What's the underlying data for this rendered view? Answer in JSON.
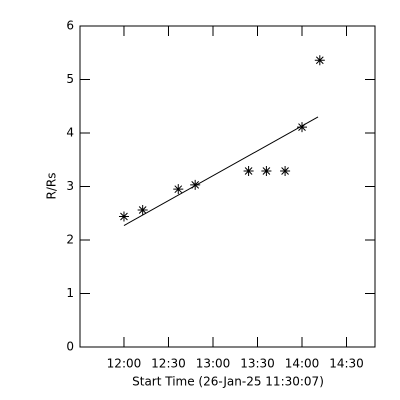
{
  "chart_data": {
    "type": "scatter",
    "xlabel": "Start Time (26-Jan-25 11:30:07)",
    "ylabel": "R/Rs",
    "x": [
      12.0,
      12.21,
      12.61,
      12.8,
      13.4,
      13.6,
      13.81,
      14.0,
      14.2
    ],
    "values": [
      2.44,
      2.56,
      2.95,
      3.03,
      3.29,
      3.29,
      3.29,
      4.11,
      5.36
    ],
    "fit": {
      "x": [
        12.0,
        14.18
      ],
      "values": [
        2.27,
        4.3
      ]
    },
    "color": "#000000",
    "xlim": [
      11.506,
      14.82
    ],
    "ylim": [
      0,
      6
    ],
    "xticks": [
      {
        "value": 12.0,
        "label": "12:00"
      },
      {
        "value": 12.5,
        "label": "12:30"
      },
      {
        "value": 13.0,
        "label": "13:00"
      },
      {
        "value": 13.5,
        "label": "13:30"
      },
      {
        "value": 14.0,
        "label": "14:00"
      },
      {
        "value": 14.5,
        "label": "14:30"
      }
    ],
    "yticks": [
      0,
      1,
      2,
      3,
      4,
      5,
      6
    ]
  }
}
